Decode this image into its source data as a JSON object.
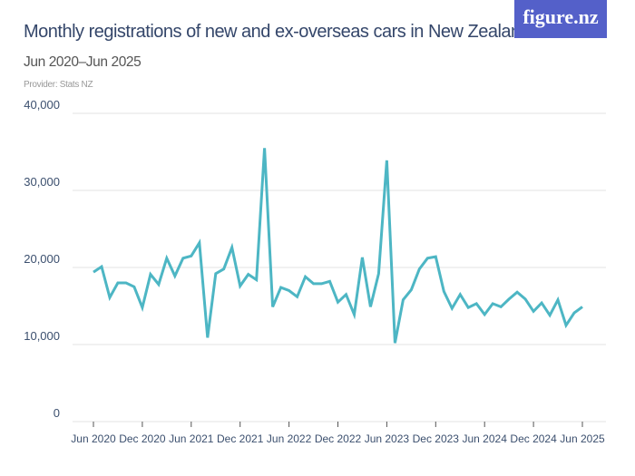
{
  "header": {
    "title": "Monthly registrations of new and ex-overseas cars in New Zealand",
    "subtitle": "Jun 2020–Jun 2025",
    "provider": "Provider: Stats NZ",
    "logo": "figure.nz"
  },
  "colors": {
    "line": "#4db6c4",
    "grid": "#e3e3e3",
    "logo_bg": "#5460c9"
  },
  "chart_data": {
    "type": "line",
    "title": "Monthly registrations of new and ex-overseas cars in New Zealand",
    "subtitle": "Jun 2020–Jun 2025",
    "xlabel": "",
    "ylabel": "",
    "ylim": [
      0,
      40000
    ],
    "yticks": [
      0,
      10000,
      20000,
      30000,
      40000
    ],
    "ytick_labels": [
      "0",
      "10,000",
      "20,000",
      "30,000",
      "40,000"
    ],
    "xtick_labels": [
      "Jun 2020",
      "Dec 2020",
      "Jun 2021",
      "Dec 2021",
      "Jun 2022",
      "Dec 2022",
      "Jun 2023",
      "Dec 2023",
      "Jun 2024",
      "Dec 2024",
      "Jun 2025"
    ],
    "grid": true,
    "x_start": "Jun 2020",
    "x_end": "Jun 2025",
    "x_interval": "monthly",
    "values": [
      19400,
      20100,
      16100,
      18000,
      18000,
      17500,
      14800,
      19100,
      17800,
      21200,
      18900,
      21200,
      21500,
      23200,
      10900,
      19200,
      19800,
      22600,
      17600,
      19100,
      18400,
      35500,
      14900,
      17400,
      17000,
      16200,
      18800,
      17900,
      17900,
      18200,
      15500,
      16500,
      13900,
      21300,
      14900,
      19200,
      33900,
      10200,
      15800,
      17100,
      19800,
      21200,
      21400,
      16900,
      14700,
      16500,
      14800,
      15300,
      13900,
      15300,
      14900,
      15900,
      16800,
      15900,
      14300,
      15400,
      13800,
      15800,
      12500,
      14100,
      14900
    ]
  }
}
